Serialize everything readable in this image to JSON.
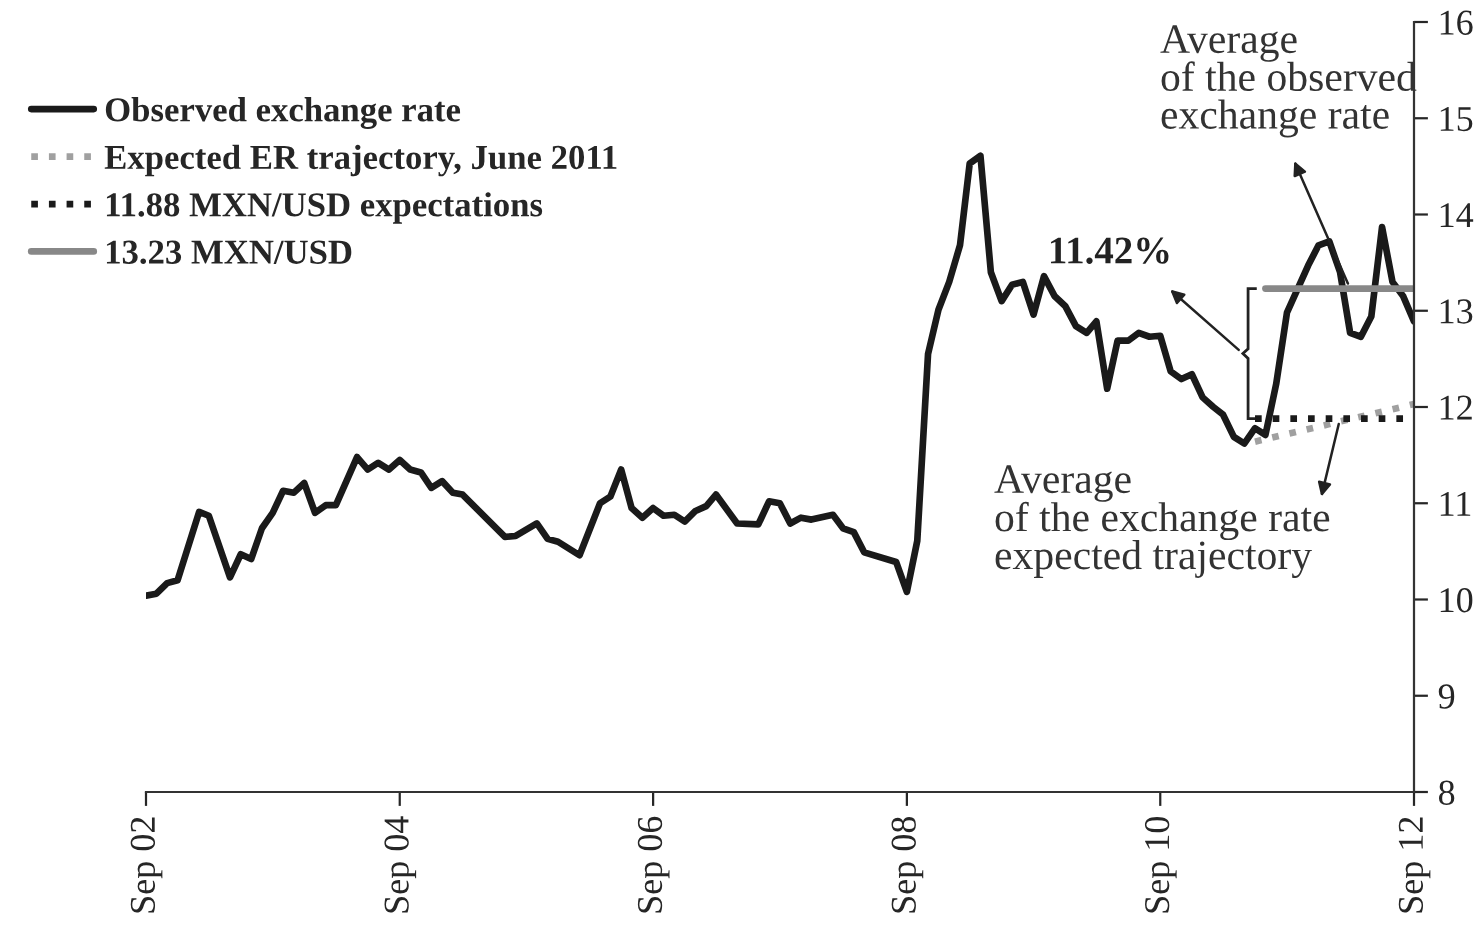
{
  "chart_data": {
    "type": "line",
    "xlim": [
      "2002-09",
      "2012-09"
    ],
    "ylim": [
      8,
      16
    ],
    "xticks": [
      {
        "value": "2002-09",
        "label": "Sep 02"
      },
      {
        "value": "2004-09",
        "label": "Sep 04"
      },
      {
        "value": "2006-09",
        "label": "Sep 06"
      },
      {
        "value": "2008-09",
        "label": "Sep 08"
      },
      {
        "value": "2010-09",
        "label": "Sep 10"
      },
      {
        "value": "2012-09",
        "label": "Sep 12"
      }
    ],
    "yticks": [
      8,
      9,
      10,
      11,
      12,
      13,
      14,
      15,
      16
    ],
    "grid": false,
    "legend": "top left",
    "series": [
      {
        "name": "Observed exchange rate",
        "color": "#1a1a1a",
        "line_style": "solid",
        "x": [
          "2002-09",
          "2002-10",
          "2002-11",
          "2002-12",
          "2003-02",
          "2003-03",
          "2003-05",
          "2003-06",
          "2003-07",
          "2003-08",
          "2003-09",
          "2003-10",
          "2003-11",
          "2003-12",
          "2004-01",
          "2004-02",
          "2004-03",
          "2004-05",
          "2004-06",
          "2004-07",
          "2004-08",
          "2004-09",
          "2004-10",
          "2004-11",
          "2004-12",
          "2005-01",
          "2005-02",
          "2005-03",
          "2005-07",
          "2005-08",
          "2005-10",
          "2005-11",
          "2005-12",
          "2006-02",
          "2006-04",
          "2006-05",
          "2006-06",
          "2006-07",
          "2006-08",
          "2006-09",
          "2006-10",
          "2006-11",
          "2006-12",
          "2007-01",
          "2007-02",
          "2007-03",
          "2007-05",
          "2007-07",
          "2007-08",
          "2007-09",
          "2007-10",
          "2007-11",
          "2007-12",
          "2008-02",
          "2008-03",
          "2008-04",
          "2008-05",
          "2008-08",
          "2008-09",
          "2008-10",
          "2008-11",
          "2008-12",
          "2009-01",
          "2009-02",
          "2009-03",
          "2009-04",
          "2009-05",
          "2009-06",
          "2009-07",
          "2009-08",
          "2009-09",
          "2009-10",
          "2009-11",
          "2009-12",
          "2010-01",
          "2010-02",
          "2010-03",
          "2010-04",
          "2010-05",
          "2010-06",
          "2010-07",
          "2010-08",
          "2010-09",
          "2010-10",
          "2010-11",
          "2010-12",
          "2011-01",
          "2011-02",
          "2011-03",
          "2011-04",
          "2011-05",
          "2011-06",
          "2011-07",
          "2011-08",
          "2011-09",
          "2011-11",
          "2011-12",
          "2012-01",
          "2012-02",
          "2012-03",
          "2012-04",
          "2012-05",
          "2012-06",
          "2012-07",
          "2012-08",
          "2012-09"
        ],
        "values": [
          10.04,
          10.06,
          10.17,
          10.2,
          10.91,
          10.87,
          10.23,
          10.47,
          10.42,
          10.74,
          10.9,
          11.13,
          11.11,
          11.21,
          10.9,
          10.98,
          10.98,
          11.48,
          11.35,
          11.42,
          11.35,
          11.45,
          11.35,
          11.32,
          11.16,
          11.23,
          11.11,
          11.09,
          10.65,
          10.66,
          10.79,
          10.63,
          10.6,
          10.46,
          11.0,
          11.07,
          11.35,
          10.95,
          10.85,
          10.95,
          10.87,
          10.88,
          10.81,
          10.92,
          10.97,
          11.09,
          10.79,
          10.78,
          11.02,
          11.0,
          10.79,
          10.85,
          10.83,
          10.88,
          10.74,
          10.7,
          10.49,
          10.39,
          10.08,
          10.61,
          12.55,
          13.01,
          13.3,
          13.68,
          14.53,
          14.61,
          13.4,
          13.1,
          13.27,
          13.3,
          12.96,
          13.36,
          13.15,
          13.05,
          12.84,
          12.77,
          12.89,
          12.19,
          12.69,
          12.69,
          12.77,
          12.73,
          12.74,
          12.37,
          12.29,
          12.34,
          12.1,
          12.0,
          11.92,
          11.69,
          11.62,
          11.78,
          11.71,
          12.24,
          12.98,
          13.47,
          13.68,
          13.72,
          13.4,
          12.77,
          12.73,
          12.94,
          13.87,
          13.3,
          13.15,
          12.89
        ]
      },
      {
        "name": "Expected ER trajectory, June 2011",
        "color": "#a0a0a0",
        "line_style": "dotted",
        "x": [
          "2011-06",
          "2012-09"
        ],
        "values": [
          11.64,
          12.03
        ]
      },
      {
        "name": "11.88 MXN/USD expectations",
        "color": "#1a1a1a",
        "line_style": "dotted",
        "x": [
          "2011-06",
          "2012-09"
        ],
        "values": [
          11.88,
          11.88
        ]
      },
      {
        "name": "13.23 MXN/USD",
        "color": "#888888",
        "line_style": "solid",
        "x": [
          "2011-07",
          "2012-09"
        ],
        "values": [
          13.23,
          13.23
        ]
      }
    ],
    "annotations": [
      {
        "text": "Average\nof the observed\nexchange rate",
        "x": "2012-03",
        "y": 13.23
      },
      {
        "text": "Average\nof the exchange rate\nexpected trajectory",
        "x": "2012-02",
        "y": 11.88
      },
      "11.42%"
    ]
  }
}
